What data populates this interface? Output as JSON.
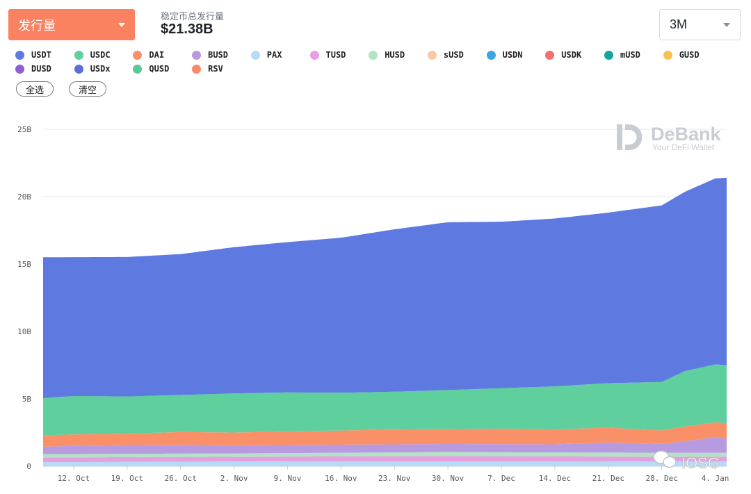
{
  "header": {
    "dropdown_label": "发行量",
    "total_label": "稳定币总发行量",
    "total_value": "$21.38B",
    "range_value": "3M"
  },
  "legend": {
    "items": [
      {
        "label": "USDT",
        "color": "#5e7ae0"
      },
      {
        "label": "USDC",
        "color": "#5fcf9d"
      },
      {
        "label": "DAI",
        "color": "#fa9068"
      },
      {
        "label": "BUSD",
        "color": "#b79ae0"
      },
      {
        "label": "PAX",
        "color": "#b5dcf7"
      },
      {
        "label": "TUSD",
        "color": "#e69fdf"
      },
      {
        "label": "HUSD",
        "color": "#b3e3c5"
      },
      {
        "label": "sUSD",
        "color": "#f9c8a6"
      },
      {
        "label": "USDN",
        "color": "#3aa7e0"
      },
      {
        "label": "USDK",
        "color": "#f26f6f"
      },
      {
        "label": "mUSD",
        "color": "#16a39b"
      },
      {
        "label": "GUSD",
        "color": "#f9c14f"
      },
      {
        "label": "DUSD",
        "color": "#8e5ed6"
      },
      {
        "label": "USDx",
        "color": "#5b6fda"
      },
      {
        "label": "QUSD",
        "color": "#59c993"
      },
      {
        "label": "RSV",
        "color": "#f9896b"
      }
    ]
  },
  "buttons": {
    "select_all": "全选",
    "clear": "清空"
  },
  "watermarks": {
    "brand": "DeBank",
    "tagline": "Your DeFi Wallet",
    "corner": "IOSG"
  },
  "chart_data": {
    "type": "area",
    "stacked": true,
    "ylim": [
      0,
      25
    ],
    "y_ticks": [
      "0",
      "5B",
      "10B",
      "15B",
      "20B",
      "25B"
    ],
    "y_tick_values": [
      0,
      5,
      10,
      15,
      20,
      25
    ],
    "x_ticks": [
      "12. Oct",
      "19. Oct",
      "26. Oct",
      "2. Nov",
      "9. Nov",
      "16. Nov",
      "23. Nov",
      "30. Nov",
      "7. Dec",
      "14. Dec",
      "21. Dec",
      "28. Dec",
      "4. Jan"
    ],
    "x_tick_days": [
      12,
      19,
      26,
      33,
      40,
      47,
      54,
      61,
      68,
      75,
      82,
      89,
      96
    ],
    "x_range_days": [
      8,
      97.5
    ],
    "units": "B",
    "series": [
      {
        "name": "PAX",
        "color": "#b5dcf7",
        "x": [
          8,
          33,
          61,
          89,
          97.5
        ],
        "y": [
          0.3,
          0.35,
          0.35,
          0.35,
          0.35
        ]
      },
      {
        "name": "TUSD",
        "color": "#e69fdf",
        "x": [
          8,
          33,
          61,
          89,
          97.5
        ],
        "y": [
          0.35,
          0.35,
          0.4,
          0.35,
          0.35
        ]
      },
      {
        "name": "HUSD",
        "color": "#b3e3c5",
        "x": [
          8,
          33,
          61,
          89,
          97.5
        ],
        "y": [
          0.25,
          0.25,
          0.3,
          0.3,
          0.3
        ]
      },
      {
        "name": "BUSD",
        "color": "#b79ae0",
        "x": [
          8,
          12,
          19,
          26,
          33,
          40,
          47,
          54,
          61,
          68,
          75,
          82,
          89,
          92,
          96,
          97.5
        ],
        "y": [
          0.55,
          0.6,
          0.65,
          0.65,
          0.6,
          0.6,
          0.6,
          0.6,
          0.6,
          0.6,
          0.6,
          0.75,
          0.65,
          0.85,
          1.15,
          1.05
        ]
      },
      {
        "name": "DAI",
        "color": "#fa9068",
        "x": [
          8,
          12,
          19,
          26,
          33,
          40,
          47,
          54,
          61,
          68,
          75,
          82,
          89,
          92,
          96,
          97.5
        ],
        "y": [
          0.85,
          0.85,
          0.85,
          0.95,
          0.95,
          1.0,
          1.05,
          1.1,
          1.1,
          1.15,
          1.1,
          1.1,
          1.0,
          1.1,
          1.1,
          1.15
        ]
      },
      {
        "name": "USDC",
        "color": "#5fcf9d",
        "x": [
          8,
          12,
          19,
          26,
          33,
          40,
          47,
          54,
          61,
          68,
          75,
          82,
          89,
          92,
          96,
          97.5
        ],
        "y": [
          2.75,
          2.85,
          2.75,
          2.75,
          2.9,
          2.9,
          2.8,
          2.8,
          2.9,
          3.0,
          3.2,
          3.3,
          3.6,
          4.1,
          4.3,
          4.3
        ]
      },
      {
        "name": "USDT",
        "color": "#5e7ae0",
        "x": [
          8,
          12,
          19,
          26,
          33,
          40,
          47,
          54,
          61,
          68,
          75,
          82,
          89,
          92,
          96,
          97.5
        ],
        "y": [
          10.45,
          10.3,
          10.35,
          10.45,
          10.85,
          11.15,
          11.5,
          12.05,
          12.45,
          12.35,
          12.45,
          12.65,
          13.1,
          13.3,
          13.8,
          13.9
        ]
      }
    ]
  }
}
